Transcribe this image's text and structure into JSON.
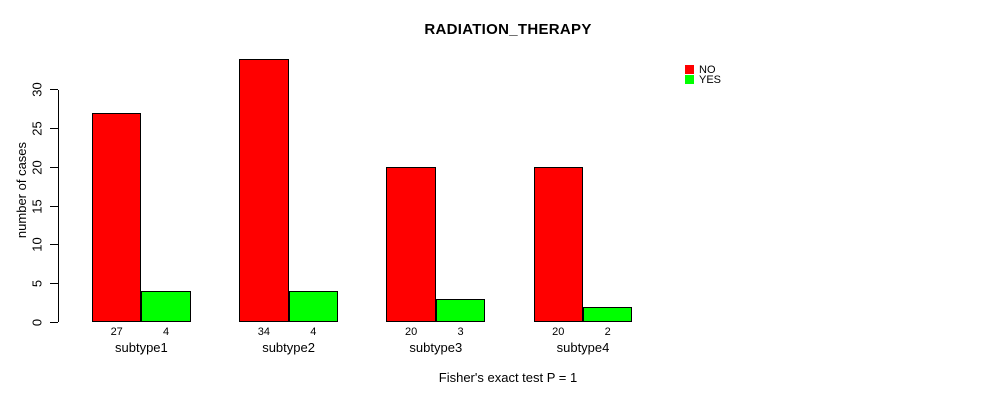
{
  "title": "RADIATION_THERAPY",
  "chart_data": {
    "type": "bar",
    "title": "RADIATION_THERAPY",
    "xlabel": "",
    "ylabel": "number of cases",
    "categories": [
      "subtype1",
      "subtype2",
      "subtype3",
      "subtype4"
    ],
    "series": [
      {
        "name": "NO",
        "color": "#FF0000",
        "values": [
          27,
          34,
          20,
          20
        ]
      },
      {
        "name": "YES",
        "color": "#00FF00",
        "values": [
          4,
          4,
          3,
          2
        ]
      }
    ],
    "bar_value_labels": [
      [
        27,
        4
      ],
      [
        34,
        4
      ],
      [
        20,
        3
      ],
      [
        20,
        2
      ]
    ],
    "yticks": [
      0,
      5,
      10,
      15,
      20,
      25,
      30
    ],
    "ylim": [
      0,
      34
    ],
    "grid": false,
    "legend_position": "top-right",
    "annotation": "Fisher's exact test P = 1"
  },
  "legend": {
    "items": [
      {
        "label": "NO",
        "color": "#FF0000"
      },
      {
        "label": "YES",
        "color": "#00FF00"
      }
    ]
  },
  "colors": {
    "bar_no": "#FF0000",
    "bar_yes": "#00FF00",
    "axis": "#000000",
    "background": "#FFFFFF"
  }
}
